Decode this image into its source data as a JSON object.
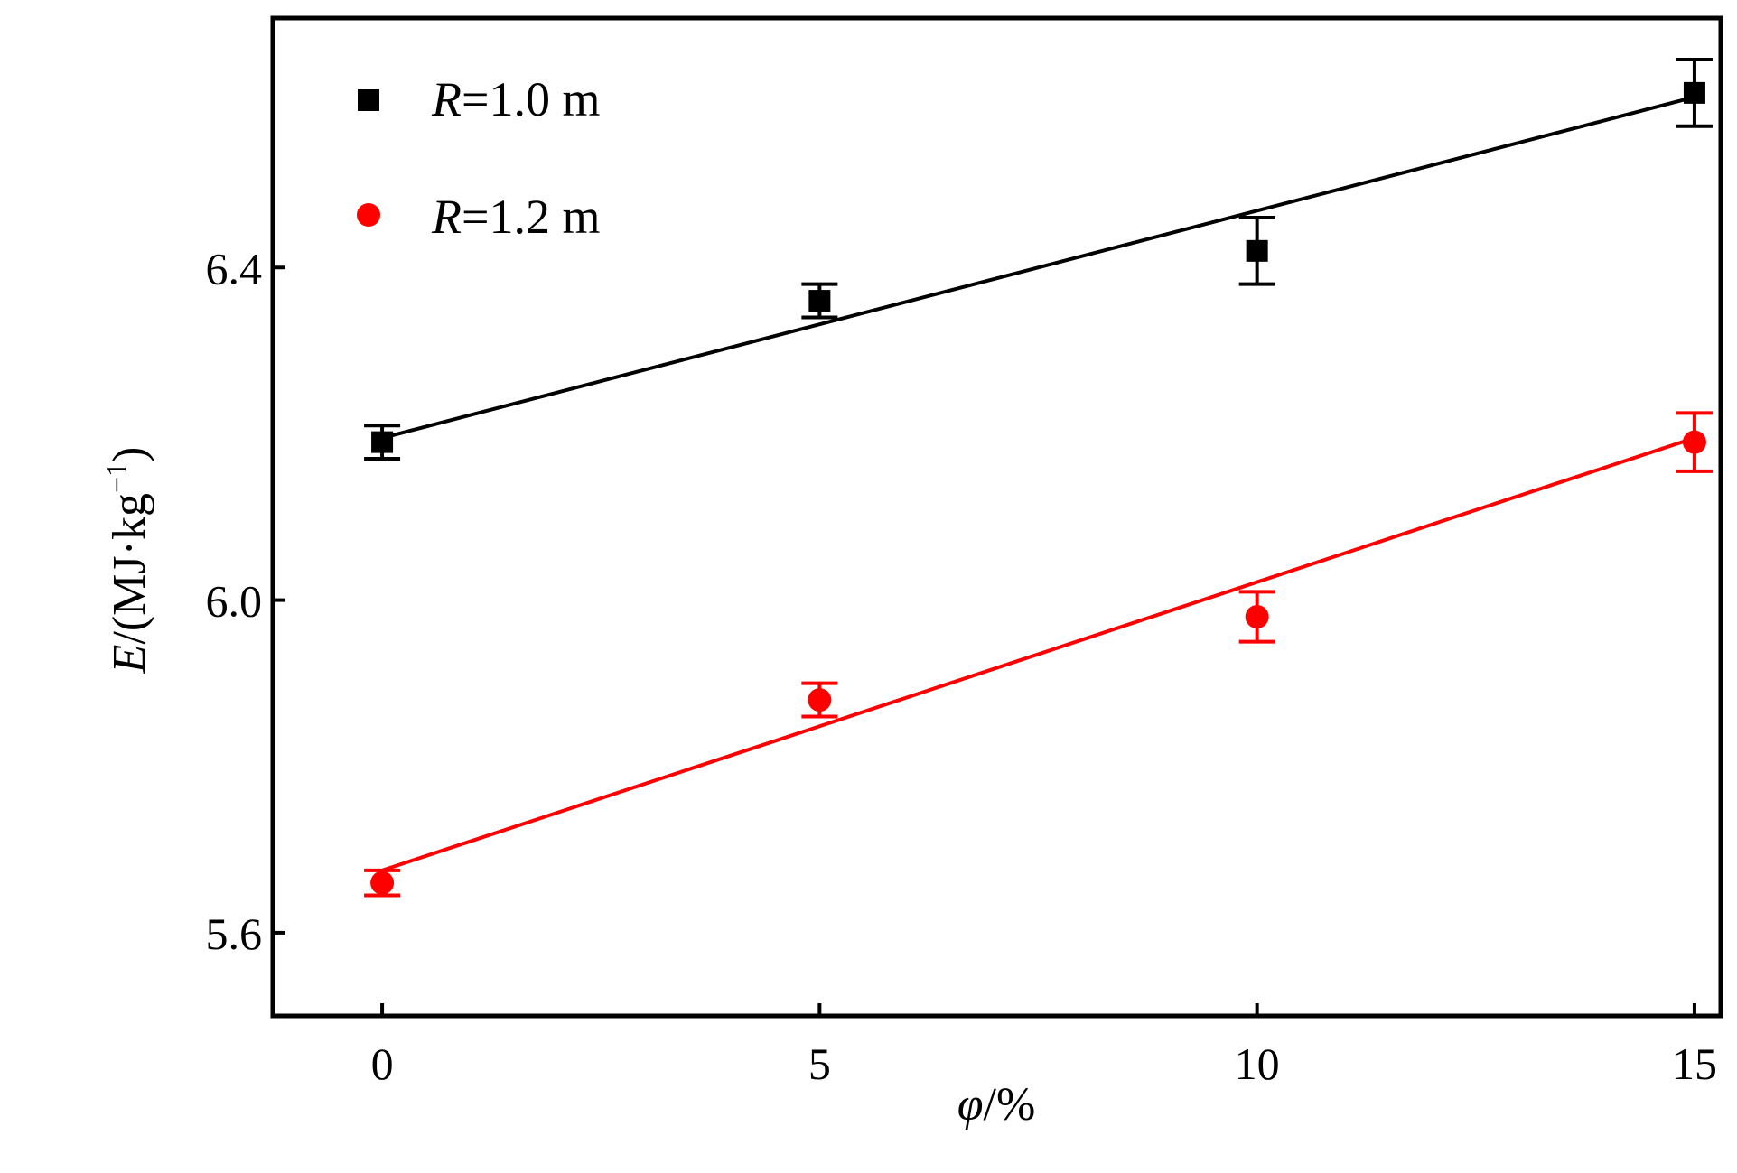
{
  "chart_data": {
    "type": "scatter",
    "xlabel": {
      "symbol": "φ",
      "unit": "/%"
    },
    "ylabel": {
      "symbol": "E",
      "unit": "/(MJ·kg",
      "exp": "−1",
      "close": ")"
    },
    "xlim": [
      -1.25,
      15.3
    ],
    "ylim": [
      5.5,
      6.7
    ],
    "xticks": [
      0,
      5,
      10,
      15
    ],
    "xtick_labels": [
      "0",
      "5",
      "10",
      "15"
    ],
    "yticks": [
      5.6,
      6.0,
      6.4
    ],
    "ytick_labels": [
      "5.6",
      "6.0",
      "6.4"
    ],
    "grid": false,
    "legend_position": "top-left",
    "series": [
      {
        "legend_symbol": "R",
        "legend_value": "=1.0 m",
        "marker": "square",
        "color": "#000000",
        "x": [
          0,
          5,
          10,
          15
        ],
        "y": [
          6.19,
          6.36,
          6.42,
          6.61
        ],
        "err": [
          0.02,
          0.02,
          0.04,
          0.04
        ],
        "fit": {
          "x": [
            0,
            15
          ],
          "y": [
            6.195,
            6.605
          ]
        }
      },
      {
        "legend_symbol": "R",
        "legend_value": "=1.2 m",
        "marker": "circle",
        "color": "#ff0000",
        "x": [
          0,
          5,
          10,
          15
        ],
        "y": [
          5.66,
          5.88,
          5.98,
          6.19
        ],
        "err": [
          0.015,
          0.02,
          0.03,
          0.035
        ],
        "fit": {
          "x": [
            0,
            15
          ],
          "y": [
            5.675,
            6.195
          ]
        }
      }
    ]
  }
}
